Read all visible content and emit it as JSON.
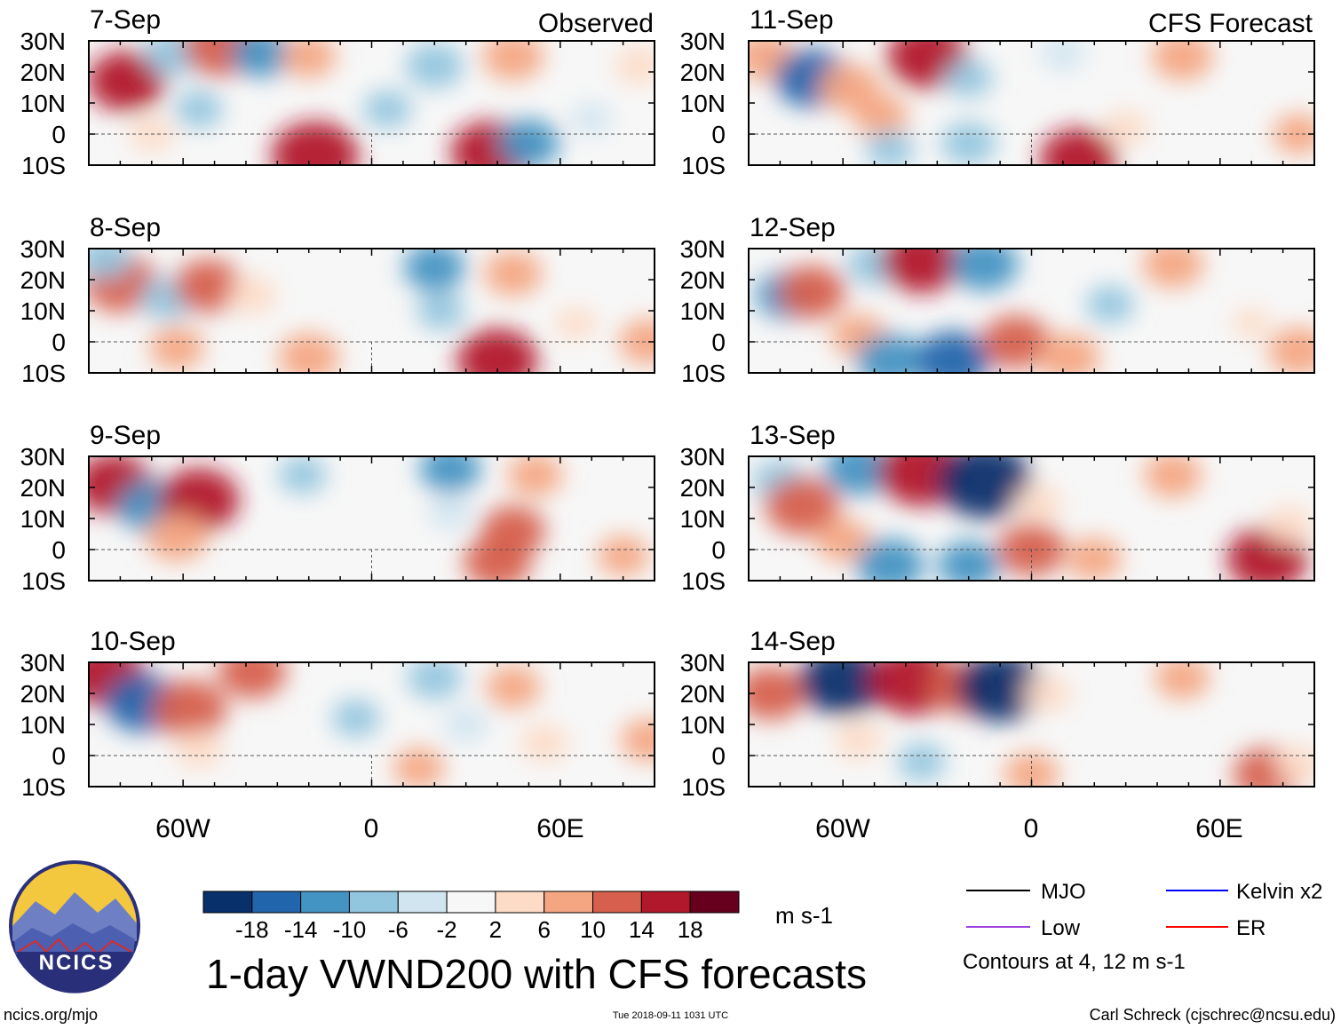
{
  "chart_data": {
    "type": "heatmap",
    "title": "1-day VWND200 with CFS forecasts",
    "units": "m s-1",
    "columns": [
      {
        "label": "Observed",
        "dates": [
          "7-Sep",
          "8-Sep",
          "9-Sep",
          "10-Sep"
        ]
      },
      {
        "label": "CFS Forecast",
        "dates": [
          "11-Sep",
          "12-Sep",
          "13-Sep",
          "14-Sep"
        ]
      }
    ],
    "x_axis": {
      "ticks": [
        "60W",
        "0",
        "60E"
      ],
      "tick_values": [
        -60,
        0,
        60
      ],
      "range": [
        -90,
        90
      ]
    },
    "y_axis": {
      "ticks": [
        "30N",
        "20N",
        "10N",
        "0",
        "10S"
      ],
      "tick_values": [
        30,
        20,
        10,
        0,
        -10
      ],
      "range": [
        -10,
        30
      ]
    },
    "colorbar": {
      "ticks": [
        "-18",
        "-14",
        "-10",
        "-6",
        "-2",
        "2",
        "6",
        "10",
        "14",
        "18"
      ],
      "tick_values": [
        -18,
        -14,
        -10,
        -6,
        -2,
        2,
        6,
        10,
        14,
        18
      ],
      "colors": [
        "#08306b",
        "#2166ac",
        "#4393c3",
        "#92c5de",
        "#d1e5f0",
        "#f7f7f7",
        "#fddbc7",
        "#f4a582",
        "#d6604d",
        "#b2182b",
        "#67001f"
      ]
    },
    "contour_legend": [
      {
        "name": "MJO",
        "color": "#000000"
      },
      {
        "name": "Kelvin x2",
        "color": "#0000ff"
      },
      {
        "name": "Low",
        "color": "#a040e0"
      },
      {
        "name": "ER",
        "color": "#ff0000"
      }
    ],
    "contour_note": "Contours at 4, 12 m s-1",
    "panels": [
      {
        "date": "7-Sep",
        "anomalies": [
          {
            "lon": -78,
            "lat": 17,
            "v": 15
          },
          {
            "lon": -63,
            "lat": 26,
            "v": -9
          },
          {
            "lon": -48,
            "lat": 28,
            "v": 14
          },
          {
            "lon": -55,
            "lat": 8,
            "v": -6
          },
          {
            "lon": -35,
            "lat": 26,
            "v": -10
          },
          {
            "lon": -20,
            "lat": 25,
            "v": 8
          },
          {
            "lon": -18,
            "lat": -7,
            "v": 18
          },
          {
            "lon": 5,
            "lat": 8,
            "v": -6
          },
          {
            "lon": 20,
            "lat": 22,
            "v": -9
          },
          {
            "lon": 45,
            "lat": 25,
            "v": 10
          },
          {
            "lon": 38,
            "lat": -6,
            "v": 16
          },
          {
            "lon": 50,
            "lat": -3,
            "v": -10
          },
          {
            "lon": 85,
            "lat": 22,
            "v": 6
          },
          {
            "lon": -70,
            "lat": 0,
            "v": 5
          },
          {
            "lon": 70,
            "lat": 5,
            "v": -4
          }
        ]
      },
      {
        "date": "8-Sep",
        "anomalies": [
          {
            "lon": -80,
            "lat": 19,
            "v": 14
          },
          {
            "lon": -65,
            "lat": 14,
            "v": -8
          },
          {
            "lon": -52,
            "lat": 18,
            "v": 12
          },
          {
            "lon": -38,
            "lat": 15,
            "v": 6
          },
          {
            "lon": -62,
            "lat": -2,
            "v": 8
          },
          {
            "lon": -20,
            "lat": -5,
            "v": 10
          },
          {
            "lon": 20,
            "lat": 24,
            "v": -10
          },
          {
            "lon": 22,
            "lat": 10,
            "v": -6
          },
          {
            "lon": 45,
            "lat": 22,
            "v": 9
          },
          {
            "lon": 40,
            "lat": -6,
            "v": 16
          },
          {
            "lon": 88,
            "lat": 0,
            "v": 9
          },
          {
            "lon": 65,
            "lat": 6,
            "v": 4
          },
          {
            "lon": -85,
            "lat": 27,
            "v": -8
          }
        ]
      },
      {
        "date": "9-Sep",
        "anomalies": [
          {
            "lon": -82,
            "lat": 21,
            "v": 15
          },
          {
            "lon": -70,
            "lat": 14,
            "v": -12
          },
          {
            "lon": -55,
            "lat": 16,
            "v": 16
          },
          {
            "lon": -62,
            "lat": 4,
            "v": 10
          },
          {
            "lon": -22,
            "lat": 24,
            "v": -6
          },
          {
            "lon": 25,
            "lat": 26,
            "v": -10
          },
          {
            "lon": 52,
            "lat": 24,
            "v": 8
          },
          {
            "lon": 45,
            "lat": 6,
            "v": 11
          },
          {
            "lon": 40,
            "lat": -4,
            "v": 12
          },
          {
            "lon": 80,
            "lat": -2,
            "v": 7
          },
          {
            "lon": 25,
            "lat": 12,
            "v": -5
          }
        ]
      },
      {
        "date": "10-Sep",
        "anomalies": [
          {
            "lon": -85,
            "lat": 26,
            "v": 16
          },
          {
            "lon": -73,
            "lat": 17,
            "v": -14
          },
          {
            "lon": -58,
            "lat": 15,
            "v": 14
          },
          {
            "lon": -38,
            "lat": 27,
            "v": 12
          },
          {
            "lon": -55,
            "lat": 2,
            "v": 6
          },
          {
            "lon": -5,
            "lat": 12,
            "v": -6
          },
          {
            "lon": 20,
            "lat": 25,
            "v": -8
          },
          {
            "lon": 45,
            "lat": 22,
            "v": 8
          },
          {
            "lon": 55,
            "lat": 4,
            "v": 6
          },
          {
            "lon": 15,
            "lat": -4,
            "v": 7
          },
          {
            "lon": 88,
            "lat": 5,
            "v": 8
          },
          {
            "lon": 30,
            "lat": 10,
            "v": -5
          }
        ]
      },
      {
        "date": "11-Sep",
        "anomalies": [
          {
            "lon": -85,
            "lat": 25,
            "v": 10
          },
          {
            "lon": -70,
            "lat": 18,
            "v": -14
          },
          {
            "lon": -58,
            "lat": 15,
            "v": 10
          },
          {
            "lon": -48,
            "lat": 6,
            "v": 8
          },
          {
            "lon": -33,
            "lat": 25,
            "v": 16
          },
          {
            "lon": -20,
            "lat": 18,
            "v": -6
          },
          {
            "lon": -45,
            "lat": -5,
            "v": -6
          },
          {
            "lon": -20,
            "lat": -3,
            "v": -8
          },
          {
            "lon": 10,
            "lat": 26,
            "v": -5
          },
          {
            "lon": 15,
            "lat": -8,
            "v": 15
          },
          {
            "lon": 48,
            "lat": 25,
            "v": 10
          },
          {
            "lon": 85,
            "lat": 0,
            "v": 7
          },
          {
            "lon": 30,
            "lat": 2,
            "v": 5
          }
        ]
      },
      {
        "date": "12-Sep",
        "anomalies": [
          {
            "lon": -78,
            "lat": 15,
            "v": -10
          },
          {
            "lon": -70,
            "lat": 16,
            "v": 12
          },
          {
            "lon": -50,
            "lat": 25,
            "v": -8
          },
          {
            "lon": -35,
            "lat": 26,
            "v": 16
          },
          {
            "lon": -15,
            "lat": 25,
            "v": -12
          },
          {
            "lon": -55,
            "lat": 2,
            "v": 8
          },
          {
            "lon": -45,
            "lat": -6,
            "v": -12
          },
          {
            "lon": -25,
            "lat": -6,
            "v": -14
          },
          {
            "lon": -5,
            "lat": 0,
            "v": 12
          },
          {
            "lon": 12,
            "lat": -5,
            "v": 10
          },
          {
            "lon": 45,
            "lat": 25,
            "v": 10
          },
          {
            "lon": 25,
            "lat": 12,
            "v": -6
          },
          {
            "lon": 85,
            "lat": -3,
            "v": 10
          },
          {
            "lon": 70,
            "lat": 6,
            "v": 3
          }
        ]
      },
      {
        "date": "13-Sep",
        "anomalies": [
          {
            "lon": -80,
            "lat": 22,
            "v": -8
          },
          {
            "lon": -73,
            "lat": 14,
            "v": 14
          },
          {
            "lon": -55,
            "lat": 26,
            "v": -12
          },
          {
            "lon": -35,
            "lat": 25,
            "v": 18
          },
          {
            "lon": -15,
            "lat": 22,
            "v": -20
          },
          {
            "lon": 2,
            "lat": 15,
            "v": 6
          },
          {
            "lon": -60,
            "lat": 3,
            "v": 8
          },
          {
            "lon": -45,
            "lat": -5,
            "v": -12
          },
          {
            "lon": -20,
            "lat": -5,
            "v": -10
          },
          {
            "lon": 0,
            "lat": 0,
            "v": 12
          },
          {
            "lon": 20,
            "lat": -3,
            "v": 8
          },
          {
            "lon": 45,
            "lat": 24,
            "v": 9
          },
          {
            "lon": 75,
            "lat": -3,
            "v": 16
          },
          {
            "lon": 82,
            "lat": 8,
            "v": 6
          }
        ]
      },
      {
        "date": "14-Sep",
        "anomalies": [
          {
            "lon": -83,
            "lat": 20,
            "v": 12
          },
          {
            "lon": -60,
            "lat": 24,
            "v": -18
          },
          {
            "lon": -38,
            "lat": 24,
            "v": 18
          },
          {
            "lon": -22,
            "lat": 22,
            "v": 12
          },
          {
            "lon": -10,
            "lat": 22,
            "v": -18
          },
          {
            "lon": 5,
            "lat": 20,
            "v": 6
          },
          {
            "lon": -55,
            "lat": 5,
            "v": 6
          },
          {
            "lon": -35,
            "lat": -2,
            "v": -6
          },
          {
            "lon": 0,
            "lat": -6,
            "v": 8
          },
          {
            "lon": 48,
            "lat": 25,
            "v": 8
          },
          {
            "lon": 75,
            "lat": -6,
            "v": 12
          },
          {
            "lon": 85,
            "lat": -3,
            "v": 6
          }
        ]
      }
    ]
  },
  "logo": {
    "text": "NCICS",
    "sky_top": "#f3c73e",
    "sky_bottom": "#fbe9a0",
    "ring": "#2a2f7a"
  },
  "footer": {
    "left": "ncics.org/mjo",
    "center": "Tue 2018-09-11 1031 UTC",
    "right": "Carl Schreck (cjschrec@ncsu.edu)"
  }
}
